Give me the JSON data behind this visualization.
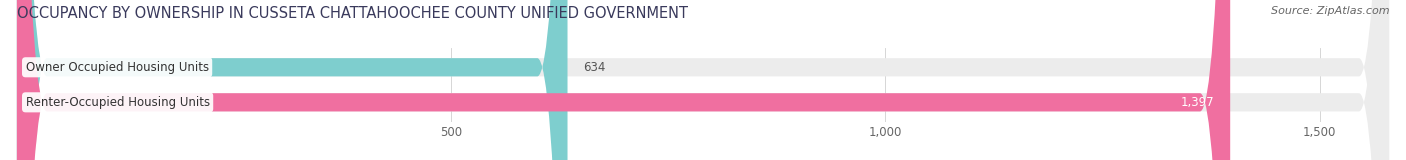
{
  "title": "OCCUPANCY BY OWNERSHIP IN CUSSETA CHATTAHOOCHEE COUNTY UNIFIED GOVERNMENT",
  "source": "Source: ZipAtlas.com",
  "categories": [
    "Owner Occupied Housing Units",
    "Renter-Occupied Housing Units"
  ],
  "values": [
    634,
    1397
  ],
  "bar_colors": [
    "#7ecece",
    "#f06fa0"
  ],
  "bar_bg_color": "#ececec",
  "xlim": [
    0,
    1580
  ],
  "xstart": 0,
  "xticks": [
    500,
    1000,
    1500
  ],
  "xtick_labels": [
    "500",
    "1,000",
    "1,500"
  ],
  "title_fontsize": 10.5,
  "title_color": "#3a3a5c",
  "source_fontsize": 8,
  "source_color": "#666666",
  "label_fontsize": 8.5,
  "value_fontsize": 8.5,
  "label_color": "#333333",
  "value_color_inside": "#ffffff",
  "value_color_outside": "#555555",
  "background_color": "#ffffff",
  "bar_height": 0.52
}
